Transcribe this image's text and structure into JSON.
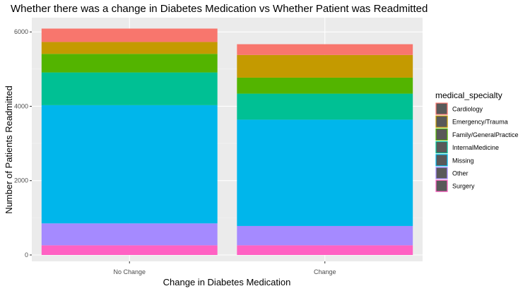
{
  "chart_data": {
    "type": "bar",
    "stacked": true,
    "title": "Whether there was a change in Diabetes Medication vs Whether Patient was Readmitted",
    "xlabel": "Change in Diabetes Medication",
    "ylabel": "Number of Patients Readmitted",
    "categories": [
      "No Change",
      "Change"
    ],
    "ylim": [
      0,
      6500
    ],
    "yticks": [
      0,
      2000,
      4000,
      6000
    ],
    "grid": true,
    "legend": {
      "title": "medical_specialty",
      "position": "right"
    },
    "series": [
      {
        "name": "Surgery",
        "color": "#FF61C3",
        "values": [
          260,
          260
        ]
      },
      {
        "name": "Other",
        "color": "#A58AFF",
        "values": [
          590,
          520
        ]
      },
      {
        "name": "Missing",
        "color": "#00B6EB",
        "values": [
          3180,
          2860
        ]
      },
      {
        "name": "InternalMedicine",
        "color": "#00C094",
        "values": [
          880,
          700
        ]
      },
      {
        "name": "Family/GeneralPractice",
        "color": "#53B400",
        "values": [
          500,
          430
        ]
      },
      {
        "name": "Emergency/Trauma",
        "color": "#C49A00",
        "values": [
          320,
          610
        ]
      },
      {
        "name": "Cardiology",
        "color": "#F8766D",
        "values": [
          360,
          290
        ]
      }
    ]
  }
}
